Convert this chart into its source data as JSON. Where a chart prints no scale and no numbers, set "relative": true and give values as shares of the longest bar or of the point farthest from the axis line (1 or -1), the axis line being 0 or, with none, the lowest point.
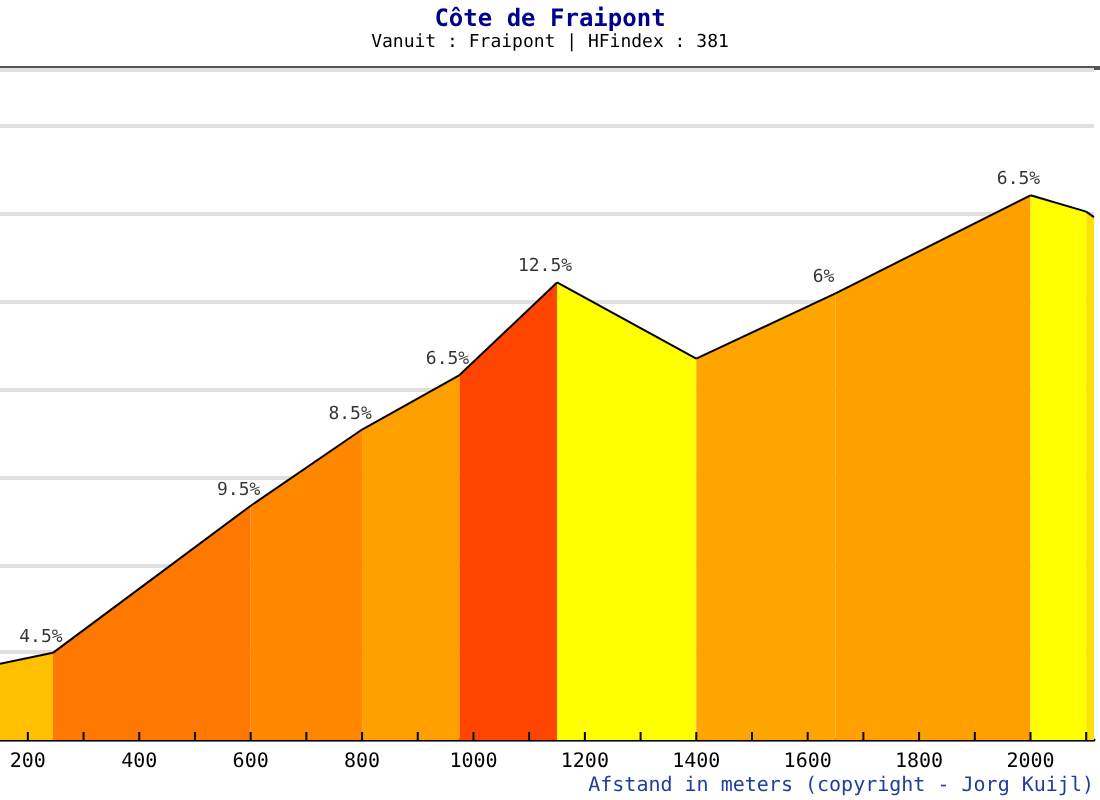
{
  "chart_data": {
    "type": "area",
    "title": "Côte de Fraipont",
    "subtitle": "Vanuit : Fraipont | HFindex : 381",
    "xlabel": "Afstand in meters (copyright - Jorg Kuijl)",
    "relative": true,
    "grid": "y",
    "xlim": [
      150,
      2114
    ],
    "xticks": [
      200,
      {
        "value": 300,
        "label": null
      },
      400,
      {
        "value": 500,
        "label": null
      },
      600,
      {
        "value": 700,
        "label": null
      },
      800,
      {
        "value": 900,
        "label": null
      },
      1000,
      {
        "value": 1100,
        "label": null
      },
      1200,
      {
        "value": 1300,
        "label": null
      },
      1400,
      {
        "value": 1500,
        "label": null
      },
      1600,
      {
        "value": 1700,
        "label": null
      },
      1800,
      {
        "value": 1900,
        "label": null
      },
      2000,
      {
        "value": 2100,
        "label": null
      }
    ],
    "series": [
      {
        "color": "#ffc000",
        "x": [
          150,
          245
        ],
        "values": [
          0.14,
          0.16
        ]
      },
      {
        "color": "#ff7800",
        "x": [
          245,
          600
        ],
        "values": [
          0.16,
          0.43
        ]
      },
      {
        "color": "#ff8800",
        "x": [
          600,
          800
        ],
        "values": [
          0.43,
          0.57
        ]
      },
      {
        "color": "#ffa000",
        "x": [
          800,
          975
        ],
        "values": [
          0.57,
          0.67
        ]
      },
      {
        "color": "#ff4500",
        "x": [
          975,
          1150
        ],
        "values": [
          0.67,
          0.84
        ]
      },
      {
        "color": "#ffff00",
        "x": [
          1150,
          1400
        ],
        "values": [
          0.84,
          0.7
        ]
      },
      {
        "color": "#ffa500",
        "x": [
          1400,
          1650
        ],
        "values": [
          0.7,
          0.82
        ]
      },
      {
        "color": "#ffa000",
        "x": [
          1650,
          2000
        ],
        "values": [
          0.82,
          1
        ]
      },
      {
        "color": "#ffff00",
        "x": [
          2000,
          2100
        ],
        "values": [
          1,
          0.97
        ]
      },
      {
        "color": "#ffe000",
        "x": [
          2100,
          2114
        ],
        "values": [
          0.97,
          0.96
        ]
      }
    ],
    "annotations": [
      {
        "text": "4.5%",
        "x": 245,
        "y": 0.16
      },
      {
        "text": "9.5%",
        "x": 600,
        "y": 0.43
      },
      {
        "text": "8.5%",
        "x": 800,
        "y": 0.57
      },
      {
        "text": "6.5%",
        "x": 975,
        "y": 0.67
      },
      {
        "text": "12.5%",
        "x": 1150,
        "y": 0.84
      },
      {
        "text": "6%",
        "x": 1650,
        "y": 0.82
      },
      {
        "text": "6.5%",
        "x": 2000,
        "y": 1
      }
    ]
  }
}
